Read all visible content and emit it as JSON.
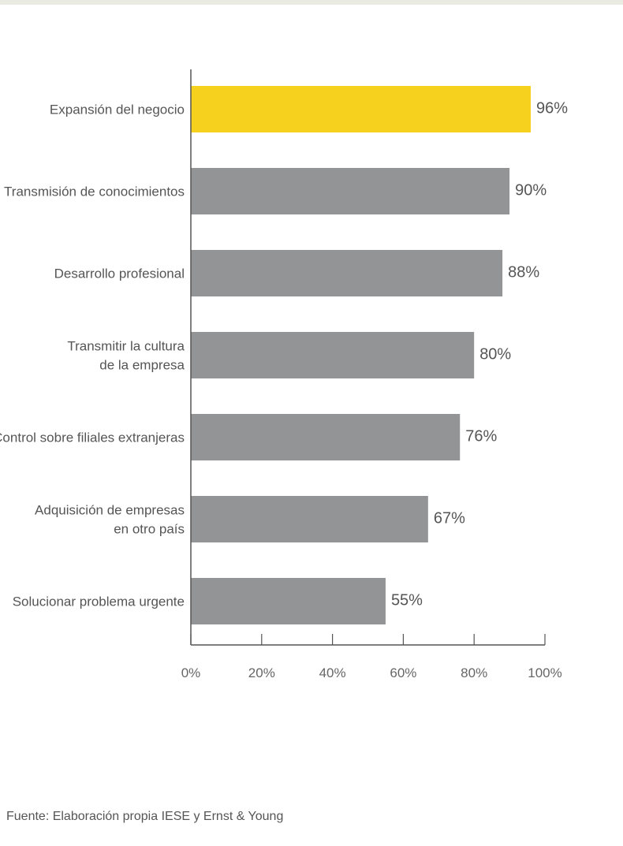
{
  "chart_data": {
    "type": "bar",
    "orientation": "horizontal",
    "categories": [
      [
        "Expansión del negocio"
      ],
      [
        "Transmisión de conocimientos"
      ],
      [
        "Desarrollo profesional"
      ],
      [
        "Transmitir la cultura",
        "de la empresa"
      ],
      [
        "Control sobre filiales extranjeras"
      ],
      [
        "Adquisición de empresas",
        "en otro país"
      ],
      [
        "Solucionar problema urgente"
      ]
    ],
    "values": [
      96,
      90,
      88,
      80,
      76,
      67,
      55
    ],
    "value_labels": [
      "96%",
      "90%",
      "88%",
      "80%",
      "76%",
      "67%",
      "55%"
    ],
    "xlim": [
      0,
      100
    ],
    "xticks": [
      0,
      20,
      40,
      60,
      80,
      100
    ],
    "xtick_labels": [
      "0%",
      "20%",
      "40%",
      "60%",
      "80%",
      "100%"
    ],
    "highlight_index": 0,
    "colors": {
      "highlight": "#f6d21e",
      "bar": "#939496",
      "axis": "#555555"
    },
    "grid": false,
    "legend": "none"
  },
  "source": "Fuente: Elaboración propia IESE y Ernst & Young"
}
